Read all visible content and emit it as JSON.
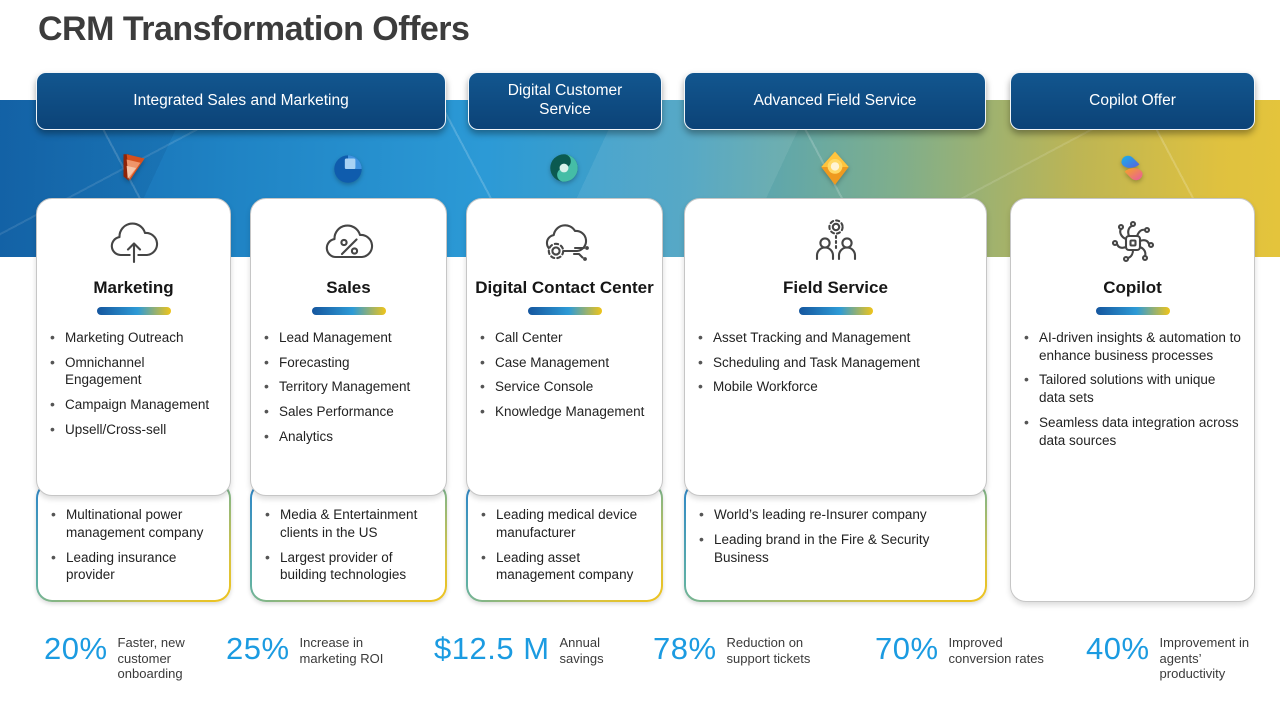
{
  "title": "CRM Transformation Offers",
  "pills": [
    {
      "label": "Integrated Sales and Marketing"
    },
    {
      "label": "Digital Customer Service"
    },
    {
      "label": "Advanced Field Service"
    },
    {
      "label": "Copilot Offer"
    }
  ],
  "cards": [
    {
      "title": "Marketing",
      "product_icon": "dynamics-365-marketing",
      "bullets": [
        "Marketing Outreach",
        "Omnichannel Engagement",
        "Campaign Management",
        "Upsell/Cross-sell"
      ],
      "clients": [
        "Multinational power management company",
        "Leading insurance provider"
      ]
    },
    {
      "title": "Sales",
      "product_icon": "dynamics-365-sales",
      "bullets": [
        "Lead Management",
        "Forecasting",
        "Territory Management",
        "Sales Performance",
        "Analytics"
      ],
      "clients": [
        "Media & Entertainment clients in the US",
        "Largest provider of building technologies"
      ]
    },
    {
      "title": "Digital Contact Center",
      "product_icon": "dynamics-365-customer-service",
      "bullets": [
        "Call Center",
        "Case Management",
        "Service Console",
        "Knowledge Management"
      ],
      "clients": [
        "Leading medical device manufacturer",
        "Leading asset management company"
      ]
    },
    {
      "title": "Field Service",
      "product_icon": "dynamics-365-field-service",
      "bullets": [
        "Asset Tracking and Management",
        "Scheduling and Task Management",
        "Mobile Workforce"
      ],
      "clients": [
        "World’s leading re-Insurer company",
        "Leading brand in the Fire & Security Business"
      ]
    },
    {
      "title": "Copilot",
      "product_icon": "microsoft-copilot",
      "bullets": [
        "AI-driven insights & automation to enhance business processes",
        "Tailored solutions with unique data sets",
        "Seamless data integration across data sources"
      ],
      "clients": []
    }
  ],
  "stats": [
    {
      "value": "20%",
      "label": "Faster, new customer onboarding"
    },
    {
      "value": "25%",
      "label": "Increase in marketing ROI"
    },
    {
      "value": "$12.5 M",
      "label": "Annual savings"
    },
    {
      "value": "78%",
      "label": "Reduction on support tickets"
    },
    {
      "value": "70%",
      "label": "Improved conversion rates"
    },
    {
      "value": "40%",
      "label": "Improvement in agents’ productivity"
    }
  ],
  "colors": {
    "stat_accent_blue": "#1b9be1",
    "pill_navy": "#0e4c82",
    "underline_gradient": [
      "#15569e",
      "#2e9bd6",
      "#f0c419"
    ],
    "band_gradient": [
      "#1568ae",
      "#2c9ad6",
      "#e4c43c"
    ],
    "client_border_gradient": [
      "#2e86c8",
      "#5fb0a5",
      "#efc31c"
    ]
  }
}
